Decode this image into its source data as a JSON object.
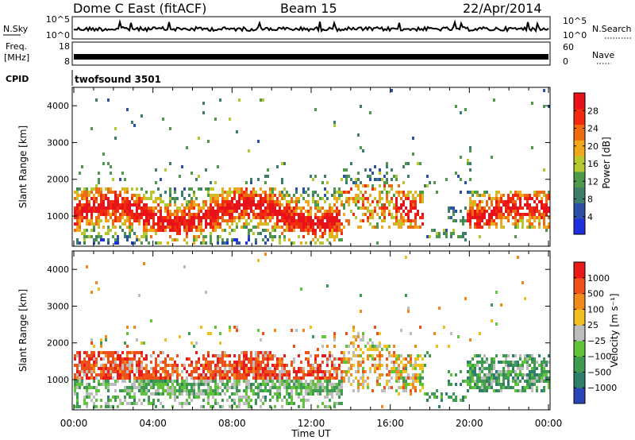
{
  "header": {
    "title": "Dome C East (fitACF)",
    "beam": "Beam 15",
    "date": "22/Apr/2014"
  },
  "chart_data": [
    {
      "type": "line",
      "name": "noise-panel",
      "left_label": "N.Sky",
      "right_label": "N.Search",
      "left_ticks": [
        "10^5",
        "10^0"
      ],
      "right_ticks": [
        "10^5",
        "10^0"
      ]
    },
    {
      "type": "line",
      "name": "frequency-panel",
      "left_label_line1": "Freq.",
      "left_label_line2": "[MHz]",
      "left_ticks": [
        "18",
        "8"
      ],
      "right_label": "Nave",
      "right_ticks": [
        "60",
        "0"
      ]
    },
    {
      "type": "table",
      "name": "cpid-panel",
      "label": "CPID",
      "program": "twofsound 3501"
    },
    {
      "type": "heatmap",
      "name": "power-panel",
      "ylabel": "Slant Range [km]",
      "yticks": [
        "4000",
        "3000",
        "2000",
        "1000"
      ],
      "ylim": [
        180,
        4500
      ],
      "xlim": [
        0,
        24
      ],
      "colorbar": {
        "label": "Power [dB]",
        "ticks": [
          "28",
          "24",
          "20",
          "16",
          "12",
          "8",
          "4"
        ],
        "colors": [
          "#1f2fe0",
          "#2c4fa8",
          "#3d7e6a",
          "#4f9a4a",
          "#b8c930",
          "#f0a81c",
          "#f06a10",
          "#f22a10",
          "#e8121a"
        ]
      }
    },
    {
      "type": "heatmap",
      "name": "velocity-panel",
      "ylabel": "Slant Range [km]",
      "yticks": [
        "4000",
        "3000",
        "2000",
        "1000"
      ],
      "ylim": [
        180,
        4500
      ],
      "xlim": [
        0,
        24
      ],
      "xticks": [
        "00:00",
        "04:00",
        "08:00",
        "12:00",
        "16:00",
        "20:00",
        "00:00"
      ],
      "xlabel": "Time UT",
      "colorbar": {
        "label": "Velocity [m s⁻¹]",
        "ticks": [
          "1000",
          "500",
          "100",
          "25",
          "−25",
          "−100",
          "−500",
          "−1000"
        ],
        "colors": [
          "#2b45b8",
          "#2f7e6c",
          "#3f9b52",
          "#5fc43a",
          "#bdbdbd",
          "#f0c020",
          "#f08a1a",
          "#f0501a",
          "#e81a1a"
        ]
      }
    }
  ]
}
